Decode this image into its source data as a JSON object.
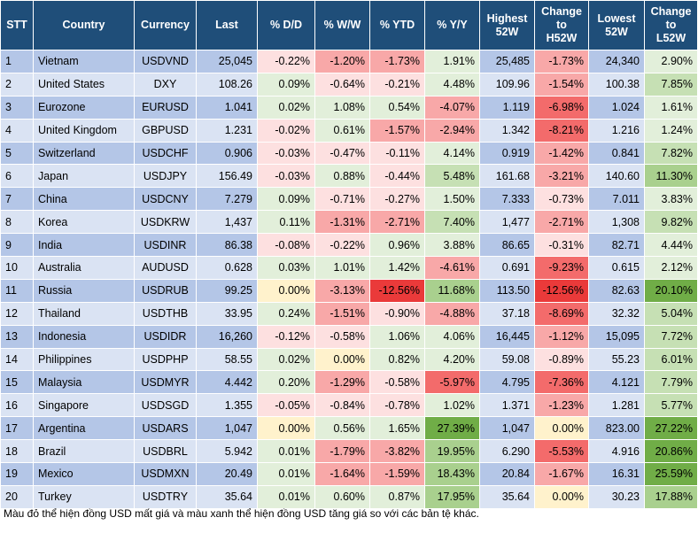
{
  "headers": [
    "STT",
    "Country",
    "Currency",
    "Last",
    "% D/D",
    "% W/W",
    "% YTD",
    "% Y/Y",
    "Highest\n52W",
    "Change\nto\nH52W",
    "Lowest\n52W",
    "Change\nto\nL52W"
  ],
  "colors": {
    "header": "#1f4e79",
    "row_odd": "#b4c6e7",
    "row_even": "#dae3f3",
    "pos_light": "#e2efda",
    "pos_mid": "#c6e0b4",
    "pos_strong": "#a9d08e",
    "pos_max": "#70ad47",
    "neg_light": "#fde0e0",
    "neg_mid": "#f8a8a8",
    "neg_strong": "#f36b6b",
    "neg_max": "#ea3a3a",
    "zero": "#fff2cc"
  },
  "rows": [
    {
      "stt": "1",
      "country": "Vietnam",
      "currency": "USDVND",
      "last": "25,045",
      "dd": "-0.22%",
      "ww": "-1.20%",
      "ytd": "-1.73%",
      "yy": "1.91%",
      "h52": "25,485",
      "ch52": "-1.73%",
      "l52": "24,340",
      "cl52": "2.90%"
    },
    {
      "stt": "2",
      "country": "United States",
      "currency": "DXY",
      "last": "108.26",
      "dd": "0.09%",
      "ww": "-0.64%",
      "ytd": "-0.21%",
      "yy": "4.48%",
      "h52": "109.96",
      "ch52": "-1.54%",
      "l52": "100.38",
      "cl52": "7.85%"
    },
    {
      "stt": "3",
      "country": "Eurozone",
      "currency": "EURUSD",
      "last": "1.041",
      "dd": "0.02%",
      "ww": "1.08%",
      "ytd": "0.54%",
      "yy": "-4.07%",
      "h52": "1.119",
      "ch52": "-6.98%",
      "l52": "1.024",
      "cl52": "1.61%"
    },
    {
      "stt": "4",
      "country": "United Kingdom",
      "currency": "GBPUSD",
      "last": "1.231",
      "dd": "-0.02%",
      "ww": "0.61%",
      "ytd": "-1.57%",
      "yy": "-2.94%",
      "h52": "1.342",
      "ch52": "-8.21%",
      "l52": "1.216",
      "cl52": "1.24%"
    },
    {
      "stt": "5",
      "country": "Switzerland",
      "currency": "USDCHF",
      "last": "0.906",
      "dd": "-0.03%",
      "ww": "-0.47%",
      "ytd": "-0.11%",
      "yy": "4.14%",
      "h52": "0.919",
      "ch52": "-1.42%",
      "l52": "0.841",
      "cl52": "7.82%"
    },
    {
      "stt": "6",
      "country": "Japan",
      "currency": "USDJPY",
      "last": "156.49",
      "dd": "-0.03%",
      "ww": "0.88%",
      "ytd": "-0.44%",
      "yy": "5.48%",
      "h52": "161.68",
      "ch52": "-3.21%",
      "l52": "140.60",
      "cl52": "11.30%"
    },
    {
      "stt": "7",
      "country": "China",
      "currency": "USDCNY",
      "last": "7.279",
      "dd": "0.09%",
      "ww": "-0.71%",
      "ytd": "-0.27%",
      "yy": "1.50%",
      "h52": "7.333",
      "ch52": "-0.73%",
      "l52": "7.011",
      "cl52": "3.83%"
    },
    {
      "stt": "8",
      "country": "Korea",
      "currency": "USDKRW",
      "last": "1,437",
      "dd": "0.11%",
      "ww": "-1.31%",
      "ytd": "-2.71%",
      "yy": "7.40%",
      "h52": "1,477",
      "ch52": "-2.71%",
      "l52": "1,308",
      "cl52": "9.82%"
    },
    {
      "stt": "9",
      "country": "India",
      "currency": "USDINR",
      "last": "86.38",
      "dd": "-0.08%",
      "ww": "-0.22%",
      "ytd": "0.96%",
      "yy": "3.88%",
      "h52": "86.65",
      "ch52": "-0.31%",
      "l52": "82.71",
      "cl52": "4.44%"
    },
    {
      "stt": "10",
      "country": "Australia",
      "currency": "AUDUSD",
      "last": "0.628",
      "dd": "0.03%",
      "ww": "1.01%",
      "ytd": "1.42%",
      "yy": "-4.61%",
      "h52": "0.691",
      "ch52": "-9.23%",
      "l52": "0.615",
      "cl52": "2.12%"
    },
    {
      "stt": "11",
      "country": "Russia",
      "currency": "USDRUB",
      "last": "99.25",
      "dd": "0.00%",
      "ww": "-3.13%",
      "ytd": "-12.56%",
      "yy": "11.68%",
      "h52": "113.50",
      "ch52": "-12.56%",
      "l52": "82.63",
      "cl52": "20.10%"
    },
    {
      "stt": "12",
      "country": "Thailand",
      "currency": "USDTHB",
      "last": "33.95",
      "dd": "0.24%",
      "ww": "-1.51%",
      "ytd": "-0.90%",
      "yy": "-4.88%",
      "h52": "37.18",
      "ch52": "-8.69%",
      "l52": "32.32",
      "cl52": "5.04%"
    },
    {
      "stt": "13",
      "country": "Indonesia",
      "currency": "USDIDR",
      "last": "16,260",
      "dd": "-0.12%",
      "ww": "-0.58%",
      "ytd": "1.06%",
      "yy": "4.06%",
      "h52": "16,445",
      "ch52": "-1.12%",
      "l52": "15,095",
      "cl52": "7.72%"
    },
    {
      "stt": "14",
      "country": "Philippines",
      "currency": "USDPHP",
      "last": "58.55",
      "dd": "0.02%",
      "ww": "0.00%",
      "ytd": "0.82%",
      "yy": "4.20%",
      "h52": "59.08",
      "ch52": "-0.89%",
      "l52": "55.23",
      "cl52": "6.01%"
    },
    {
      "stt": "15",
      "country": "Malaysia",
      "currency": "USDMYR",
      "last": "4.442",
      "dd": "0.20%",
      "ww": "-1.29%",
      "ytd": "-0.58%",
      "yy": "-5.97%",
      "h52": "4.795",
      "ch52": "-7.36%",
      "l52": "4.121",
      "cl52": "7.79%"
    },
    {
      "stt": "16",
      "country": "Singapore",
      "currency": "USDSGD",
      "last": "1.355",
      "dd": "-0.05%",
      "ww": "-0.84%",
      "ytd": "-0.78%",
      "yy": "1.02%",
      "h52": "1.371",
      "ch52": "-1.23%",
      "l52": "1.281",
      "cl52": "5.77%"
    },
    {
      "stt": "17",
      "country": "Argentina",
      "currency": "USDARS",
      "last": "1,047",
      "dd": "0.00%",
      "ww": "0.56%",
      "ytd": "1.65%",
      "yy": "27.39%",
      "h52": "1,047",
      "ch52": "0.00%",
      "l52": "823.00",
      "cl52": "27.22%"
    },
    {
      "stt": "18",
      "country": "Brazil",
      "currency": "USDBRL",
      "last": "5.942",
      "dd": "0.01%",
      "ww": "-1.79%",
      "ytd": "-3.82%",
      "yy": "19.95%",
      "h52": "6.290",
      "ch52": "-5.53%",
      "l52": "4.916",
      "cl52": "20.86%"
    },
    {
      "stt": "19",
      "country": "Mexico",
      "currency": "USDMXN",
      "last": "20.49",
      "dd": "0.01%",
      "ww": "-1.64%",
      "ytd": "-1.59%",
      "yy": "18.43%",
      "h52": "20.84",
      "ch52": "-1.67%",
      "l52": "16.31",
      "cl52": "25.59%"
    },
    {
      "stt": "20",
      "country": "Turkey",
      "currency": "USDTRY",
      "last": "35.64",
      "dd": "0.01%",
      "ww": "0.60%",
      "ytd": "0.87%",
      "yy": "17.95%",
      "h52": "35.64",
      "ch52": "0.00%",
      "l52": "30.23",
      "cl52": "17.88%"
    }
  ],
  "note": "Màu đỏ thể hiện đồng USD mất giá và màu xanh thể hiện đồng USD tăng giá so với các bản tệ khác."
}
